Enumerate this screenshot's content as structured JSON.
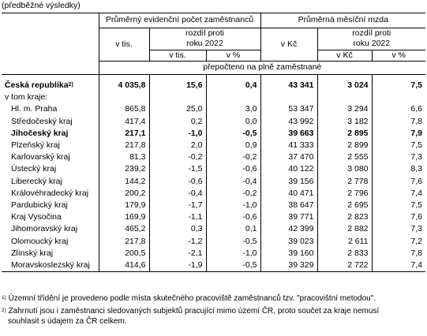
{
  "preliminary_label": "(předběžné výsledky)",
  "header": {
    "group_employees": "Průměrný evidenční počet zaměstnanců",
    "group_wage": "Průměrná měsíční mzda",
    "v_tis": "v tis.",
    "v_kc": "v Kč",
    "diff_line1": "rozdíl proti",
    "diff_line2": "roku 2022",
    "sub_v_tis": "v tis.",
    "sub_pct": "v %",
    "sub_kc": "v Kč",
    "sub_pct2": "v %",
    "recalc": "přepočteno na plně zaměstnané"
  },
  "total": {
    "name": "Česká republika",
    "sup": "2)",
    "emp": "4 035,8",
    "emp_diff": "15,6",
    "emp_pct": "0,4",
    "wage": "43 341",
    "wage_diff": "3 024",
    "wage_pct": "7,5"
  },
  "v_tom_kraje": "v tom kraje:",
  "rows": [
    {
      "name": "Hl. m. Praha",
      "emp": "865,8",
      "emp_diff": "25,0",
      "emp_pct": "3,0",
      "wage": "53 347",
      "wage_diff": "3 294",
      "wage_pct": "6,6"
    },
    {
      "name": "Středočeský kraj",
      "emp": "417,4",
      "emp_diff": "0,2",
      "emp_pct": "0,0",
      "wage": "43 992",
      "wage_diff": "3 182",
      "wage_pct": "7,8"
    },
    {
      "name": "Jihočeský kraj",
      "emp": "217,1",
      "emp_diff": "-1,0",
      "emp_pct": "-0,5",
      "wage": "39 663",
      "wage_diff": "2 895",
      "wage_pct": "7,9"
    },
    {
      "name": "Plzeňský kraj",
      "emp": "217,8",
      "emp_diff": "2,0",
      "emp_pct": "0,9",
      "wage": "41 333",
      "wage_diff": "2 899",
      "wage_pct": "7,5"
    },
    {
      "name": "Karlovarský kraj",
      "emp": "81,3",
      "emp_diff": "-0,2",
      "emp_pct": "-0,2",
      "wage": "37 470",
      "wage_diff": "2 555",
      "wage_pct": "7,3"
    },
    {
      "name": "Ústecký kraj",
      "emp": "239,2",
      "emp_diff": "-1,5",
      "emp_pct": "-0,6",
      "wage": "40 122",
      "wage_diff": "3 080",
      "wage_pct": "8,3"
    },
    {
      "name": "Liberecký kraj",
      "emp": "144,2",
      "emp_diff": "-0,6",
      "emp_pct": "-0,4",
      "wage": "39 156",
      "wage_diff": "2 778",
      "wage_pct": "7,6"
    },
    {
      "name": "Královéhradecký kraj",
      "emp": "200,2",
      "emp_diff": "-0,4",
      "emp_pct": "-0,2",
      "wage": "40 471",
      "wage_diff": "2 796",
      "wage_pct": "7,4"
    },
    {
      "name": "Pardubický kraj",
      "emp": "179,9",
      "emp_diff": "-1,7",
      "emp_pct": "-1,0",
      "wage": "38 647",
      "wage_diff": "2 695",
      "wage_pct": "7,5"
    },
    {
      "name": "Kraj Vysočina",
      "emp": "169,9",
      "emp_diff": "-1,1",
      "emp_pct": "-0,6",
      "wage": "39 771",
      "wage_diff": "2 823",
      "wage_pct": "7,6"
    },
    {
      "name": "Jihomoravský kraj",
      "emp": "465,2",
      "emp_diff": "0,3",
      "emp_pct": "0,1",
      "wage": "42 399",
      "wage_diff": "2 882",
      "wage_pct": "7,3"
    },
    {
      "name": "Olomoucký kraj",
      "emp": "217,8",
      "emp_diff": "-1,2",
      "emp_pct": "-0,5",
      "wage": "39 023",
      "wage_diff": "2 611",
      "wage_pct": "7,2"
    },
    {
      "name": "Zlínský kraj",
      "emp": "200,5",
      "emp_diff": "-2,1",
      "emp_pct": "-1,0",
      "wage": "39 160",
      "wage_diff": "2 833",
      "wage_pct": "7,8"
    },
    {
      "name": "Moravskoslezský kraj",
      "emp": "414,6",
      "emp_diff": "-1,9",
      "emp_pct": "-0,5",
      "wage": "39 329",
      "wage_diff": "2 722",
      "wage_pct": "7,4"
    }
  ],
  "bold_row_index": 2,
  "notes": {
    "n1_sup": "1)",
    "n1": "Územní třídění je provedeno podle místa skutečného pracoviště zaměstnanců tzv. \"pracovištní metodou\".",
    "n2_sup": "2)",
    "n2_line1": "Zahrnutí jsou i zaměstnanci sledovaných subjektů pracující mimo území ČR, proto součet za kraje nemusí",
    "n2_line2": "souhlasit s údajem za ČR celkem."
  }
}
